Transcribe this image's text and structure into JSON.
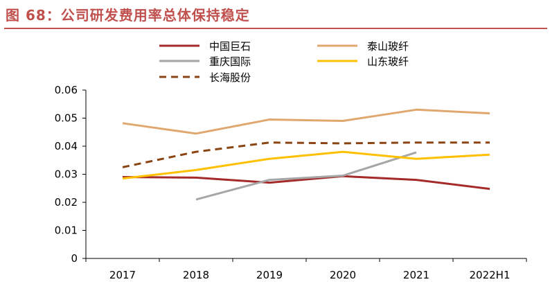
{
  "figure_title": "图 68：公司研发费用率总体保持稳定",
  "chart_data": {
    "type": "line",
    "title": "公司研发费用率总体保持稳定",
    "xlabel": "",
    "ylabel": "",
    "categories": [
      "2017",
      "2018",
      "2019",
      "2020",
      "2021",
      "2022H1"
    ],
    "ylim": [
      0,
      0.06
    ],
    "yticks": [
      "0",
      "0.01",
      "0.02",
      "0.03",
      "0.04",
      "0.05",
      "0.06"
    ],
    "ytick_values": [
      0,
      0.01,
      0.02,
      0.03,
      0.04,
      0.05,
      0.06
    ],
    "grid": false,
    "legend_position": "top",
    "series": [
      {
        "name": "中国巨石",
        "color": "#a52a2a",
        "dash": false,
        "values": [
          0.029,
          0.0288,
          0.027,
          0.0293,
          0.028,
          0.0248
        ]
      },
      {
        "name": "泰山玻纤",
        "color": "#e0a86f",
        "dash": false,
        "values": [
          0.0482,
          0.0445,
          0.0495,
          0.049,
          0.053,
          0.0517
        ]
      },
      {
        "name": "重庆国际",
        "color": "#a6a6a6",
        "dash": false,
        "values": [
          null,
          0.021,
          0.028,
          0.0295,
          0.0378,
          null
        ]
      },
      {
        "name": "山东玻纤",
        "color": "#ffc000",
        "dash": false,
        "values": [
          0.0285,
          0.0315,
          0.0355,
          0.038,
          0.0355,
          0.037
        ]
      },
      {
        "name": "长海股份",
        "color": "#8b4513",
        "dash": true,
        "values": [
          0.0325,
          0.038,
          0.0413,
          0.041,
          0.0413,
          0.0413
        ]
      }
    ]
  }
}
